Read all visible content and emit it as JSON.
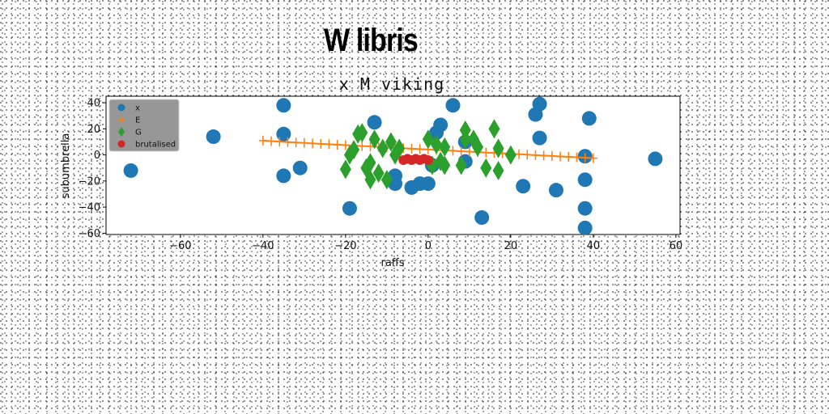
{
  "banner": "W libris",
  "chart_data": {
    "type": "scatter",
    "title": "x M viking",
    "xlabel": "raffs",
    "ylabel": "subumbrella",
    "xlim": [
      -78,
      61
    ],
    "ylim": [
      -61,
      45
    ],
    "xticks": [
      -60,
      -40,
      -20,
      0,
      20,
      40,
      60
    ],
    "yticks": [
      -60,
      -40,
      -20,
      0,
      20,
      40
    ],
    "legend_position": "top-left",
    "series": [
      {
        "name": "x",
        "marker": "circle",
        "color": "#1f77b4",
        "points": [
          [
            -72,
            -12
          ],
          [
            -52,
            14
          ],
          [
            -35,
            38
          ],
          [
            -35,
            16
          ],
          [
            -35,
            -16
          ],
          [
            -31,
            -10
          ],
          [
            -19,
            -41
          ],
          [
            -13,
            25
          ],
          [
            -8,
            -16
          ],
          [
            -8,
            -22
          ],
          [
            -4,
            -25
          ],
          [
            -2,
            -22
          ],
          [
            0,
            -22
          ],
          [
            1,
            -8
          ],
          [
            2,
            17
          ],
          [
            3,
            23
          ],
          [
            6,
            38
          ],
          [
            9,
            10
          ],
          [
            9,
            -5
          ],
          [
            13,
            -48
          ],
          [
            23,
            -24
          ],
          [
            26,
            31
          ],
          [
            27,
            39
          ],
          [
            27,
            13
          ],
          [
            31,
            -27
          ],
          [
            38,
            -1
          ],
          [
            38,
            -19
          ],
          [
            38,
            -41
          ],
          [
            38,
            -56
          ],
          [
            39,
            28
          ],
          [
            55,
            -3
          ]
        ]
      },
      {
        "name": "E",
        "marker": "plus-line",
        "color": "#ff7f0e",
        "points": [
          [
            -40,
            11
          ],
          [
            -38,
            10.5
          ],
          [
            -36,
            10.2
          ],
          [
            -34,
            9.8
          ],
          [
            -32,
            9.5
          ],
          [
            -30,
            9.2
          ],
          [
            -28,
            8.8
          ],
          [
            -26,
            8.5
          ],
          [
            -24,
            8.2
          ],
          [
            -22,
            7.8
          ],
          [
            -20,
            7.5
          ],
          [
            -18,
            7.2
          ],
          [
            -16,
            6.8
          ],
          [
            -14,
            6.5
          ],
          [
            -12,
            6.2
          ],
          [
            -10,
            5.8
          ],
          [
            -8,
            5.5
          ],
          [
            -6,
            5.2
          ],
          [
            -4,
            4.8
          ],
          [
            -2,
            4.5
          ],
          [
            0,
            4.2
          ],
          [
            2,
            3.8
          ],
          [
            4,
            3.5
          ],
          [
            6,
            3.2
          ],
          [
            8,
            2.8
          ],
          [
            10,
            2.5
          ],
          [
            12,
            2.2
          ],
          [
            14,
            1.8
          ],
          [
            16,
            1.5
          ],
          [
            18,
            1.2
          ],
          [
            20,
            0.8
          ],
          [
            22,
            0.5
          ],
          [
            24,
            0.2
          ],
          [
            26,
            -0.2
          ],
          [
            28,
            -0.5
          ],
          [
            30,
            -0.8
          ],
          [
            32,
            -1.2
          ],
          [
            34,
            -1.5
          ],
          [
            36,
            -1.8
          ],
          [
            38,
            -2.2
          ],
          [
            40,
            -2.5
          ]
        ]
      },
      {
        "name": "G",
        "marker": "diamond",
        "color": "#2ca02c",
        "points": [
          [
            -20,
            -11
          ],
          [
            -19,
            0
          ],
          [
            -18,
            4
          ],
          [
            -17,
            16
          ],
          [
            -16,
            17
          ],
          [
            -15,
            -10
          ],
          [
            -14,
            -19
          ],
          [
            -14,
            -6
          ],
          [
            -13,
            12
          ],
          [
            -12,
            -14
          ],
          [
            -11,
            5
          ],
          [
            -10,
            -19
          ],
          [
            -9,
            10
          ],
          [
            -8,
            0
          ],
          [
            -7,
            5
          ],
          [
            0,
            12
          ],
          [
            1,
            -8
          ],
          [
            2,
            8
          ],
          [
            3,
            -5
          ],
          [
            4,
            -8
          ],
          [
            4,
            6
          ],
          [
            8,
            -8
          ],
          [
            9,
            19
          ],
          [
            9,
            12
          ],
          [
            11,
            12
          ],
          [
            12,
            6
          ],
          [
            14,
            -10
          ],
          [
            16,
            20
          ],
          [
            17,
            5
          ],
          [
            17,
            -12
          ],
          [
            20,
            0
          ]
        ]
      },
      {
        "name": "brutalised",
        "marker": "circle-small",
        "color": "#d62728",
        "points": [
          [
            -6,
            -4
          ],
          [
            -5,
            -3
          ],
          [
            -4,
            -4
          ],
          [
            -3,
            -3
          ],
          [
            -2,
            -4
          ],
          [
            -1,
            -3
          ],
          [
            0,
            -4
          ]
        ]
      }
    ]
  }
}
